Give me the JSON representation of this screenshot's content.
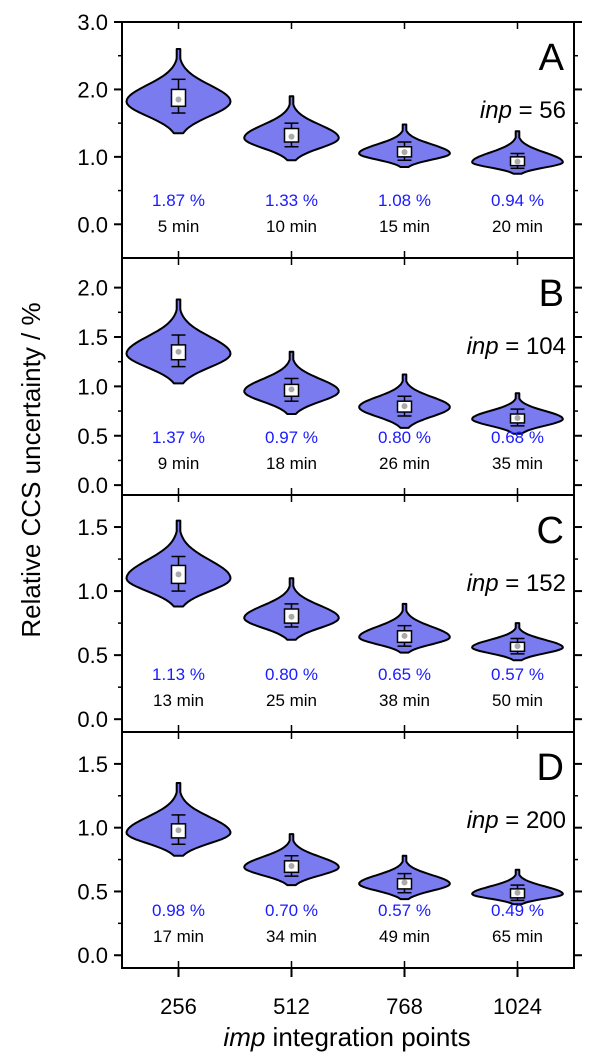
{
  "chart_data": {
    "type": "violin",
    "ylabel": "Relative CCS uncertainty / %",
    "xlabel_italic": "imp",
    "xlabel_rest": " integration points",
    "categories": [
      "256",
      "512",
      "768",
      "1024"
    ],
    "colors": {
      "violin_fill": "#7b7bf0",
      "violin_stroke": "#000000",
      "percent_text": "#1a1aff",
      "median_dot": "#aaaaaa"
    },
    "panels": [
      {
        "letter": "A",
        "inp_label": "inp",
        "inp_value": " = 56",
        "ylim": [
          -0.5,
          3.0
        ],
        "yticks": [
          "0.0",
          "1.0",
          "2.0",
          "3.0"
        ],
        "ytick_values": [
          0,
          1,
          2,
          3
        ],
        "percent_labels": [
          "1.87 %",
          "1.33 %",
          "1.08 %",
          "0.94 %"
        ],
        "time_labels": [
          "5 min",
          "10 min",
          "15 min",
          "20 min"
        ],
        "violins": [
          {
            "min": 1.35,
            "max": 2.6,
            "mode": 1.82,
            "q1": 1.75,
            "q3": 2.0,
            "whisker_lo": 1.65,
            "whisker_hi": 2.15,
            "median": 1.85,
            "width": 0.55
          },
          {
            "min": 0.95,
            "max": 1.9,
            "mode": 1.28,
            "q1": 1.22,
            "q3": 1.42,
            "whisker_lo": 1.15,
            "whisker_hi": 1.5,
            "median": 1.3,
            "width": 0.5
          },
          {
            "min": 0.85,
            "max": 1.48,
            "mode": 1.05,
            "q1": 1.0,
            "q3": 1.15,
            "whisker_lo": 0.95,
            "whisker_hi": 1.22,
            "median": 1.07,
            "width": 0.48
          },
          {
            "min": 0.75,
            "max": 1.38,
            "mode": 0.92,
            "q1": 0.87,
            "q3": 1.0,
            "whisker_lo": 0.83,
            "whisker_hi": 1.05,
            "median": 0.93,
            "width": 0.48
          }
        ]
      },
      {
        "letter": "B",
        "inp_label": "inp",
        "inp_value": " = 104",
        "ylim": [
          -0.1,
          2.3
        ],
        "yticks": [
          "0.0",
          "0.5",
          "1.0",
          "1.5",
          "2.0"
        ],
        "ytick_values": [
          0,
          0.5,
          1,
          1.5,
          2
        ],
        "percent_labels": [
          "1.37 %",
          "0.97 %",
          "0.80 %",
          "0.68 %"
        ],
        "time_labels": [
          "9 min",
          "18 min",
          "26 min",
          "35 min"
        ],
        "violins": [
          {
            "min": 1.03,
            "max": 1.88,
            "mode": 1.33,
            "q1": 1.27,
            "q3": 1.42,
            "whisker_lo": 1.2,
            "whisker_hi": 1.52,
            "median": 1.35,
            "width": 0.55
          },
          {
            "min": 0.72,
            "max": 1.35,
            "mode": 0.95,
            "q1": 0.9,
            "q3": 1.02,
            "whisker_lo": 0.85,
            "whisker_hi": 1.08,
            "median": 0.97,
            "width": 0.5
          },
          {
            "min": 0.58,
            "max": 1.12,
            "mode": 0.79,
            "q1": 0.74,
            "q3": 0.85,
            "whisker_lo": 0.7,
            "whisker_hi": 0.9,
            "median": 0.8,
            "width": 0.48
          },
          {
            "min": 0.52,
            "max": 0.93,
            "mode": 0.67,
            "q1": 0.63,
            "q3": 0.72,
            "whisker_lo": 0.6,
            "whisker_hi": 0.77,
            "median": 0.68,
            "width": 0.48
          }
        ]
      },
      {
        "letter": "C",
        "inp_label": "inp",
        "inp_value": " = 152",
        "ylim": [
          -0.1,
          1.75
        ],
        "yticks": [
          "0.0",
          "0.5",
          "1.0",
          "1.5"
        ],
        "ytick_values": [
          0,
          0.5,
          1,
          1.5
        ],
        "percent_labels": [
          "1.13 %",
          "0.80 %",
          "0.65 %",
          "0.57 %"
        ],
        "time_labels": [
          "13 min",
          "25 min",
          "38 min",
          "50 min"
        ],
        "violins": [
          {
            "min": 0.88,
            "max": 1.55,
            "mode": 1.1,
            "q1": 1.06,
            "q3": 1.2,
            "whisker_lo": 1.0,
            "whisker_hi": 1.27,
            "median": 1.13,
            "width": 0.55
          },
          {
            "min": 0.62,
            "max": 1.1,
            "mode": 0.79,
            "q1": 0.75,
            "q3": 0.86,
            "whisker_lo": 0.72,
            "whisker_hi": 0.9,
            "median": 0.8,
            "width": 0.5
          },
          {
            "min": 0.52,
            "max": 0.9,
            "mode": 0.64,
            "q1": 0.6,
            "q3": 0.69,
            "whisker_lo": 0.57,
            "whisker_hi": 0.73,
            "median": 0.65,
            "width": 0.48
          },
          {
            "min": 0.46,
            "max": 0.75,
            "mode": 0.56,
            "q1": 0.53,
            "q3": 0.6,
            "whisker_lo": 0.51,
            "whisker_hi": 0.63,
            "median": 0.57,
            "width": 0.48
          }
        ]
      },
      {
        "letter": "D",
        "inp_label": "inp",
        "inp_value": " = 200",
        "ylim": [
          -0.1,
          1.75
        ],
        "yticks": [
          "0.0",
          "0.5",
          "1.0",
          "1.5"
        ],
        "ytick_values": [
          0,
          0.5,
          1,
          1.5
        ],
        "percent_labels": [
          "0.98 %",
          "0.70 %",
          "0.57 %",
          "0.49 %"
        ],
        "time_labels": [
          "17 min",
          "34 min",
          "49 min",
          "65 min"
        ],
        "violins": [
          {
            "min": 0.78,
            "max": 1.35,
            "mode": 0.96,
            "q1": 0.92,
            "q3": 1.03,
            "whisker_lo": 0.87,
            "whisker_hi": 1.1,
            "median": 0.98,
            "width": 0.55
          },
          {
            "min": 0.55,
            "max": 0.95,
            "mode": 0.69,
            "q1": 0.65,
            "q3": 0.74,
            "whisker_lo": 0.62,
            "whisker_hi": 0.78,
            "median": 0.7,
            "width": 0.5
          },
          {
            "min": 0.44,
            "max": 0.78,
            "mode": 0.56,
            "q1": 0.52,
            "q3": 0.6,
            "whisker_lo": 0.49,
            "whisker_hi": 0.64,
            "median": 0.57,
            "width": 0.48
          },
          {
            "min": 0.4,
            "max": 0.67,
            "mode": 0.48,
            "q1": 0.45,
            "q3": 0.52,
            "whisker_lo": 0.43,
            "whisker_hi": 0.55,
            "median": 0.49,
            "width": 0.48
          }
        ]
      }
    ]
  }
}
